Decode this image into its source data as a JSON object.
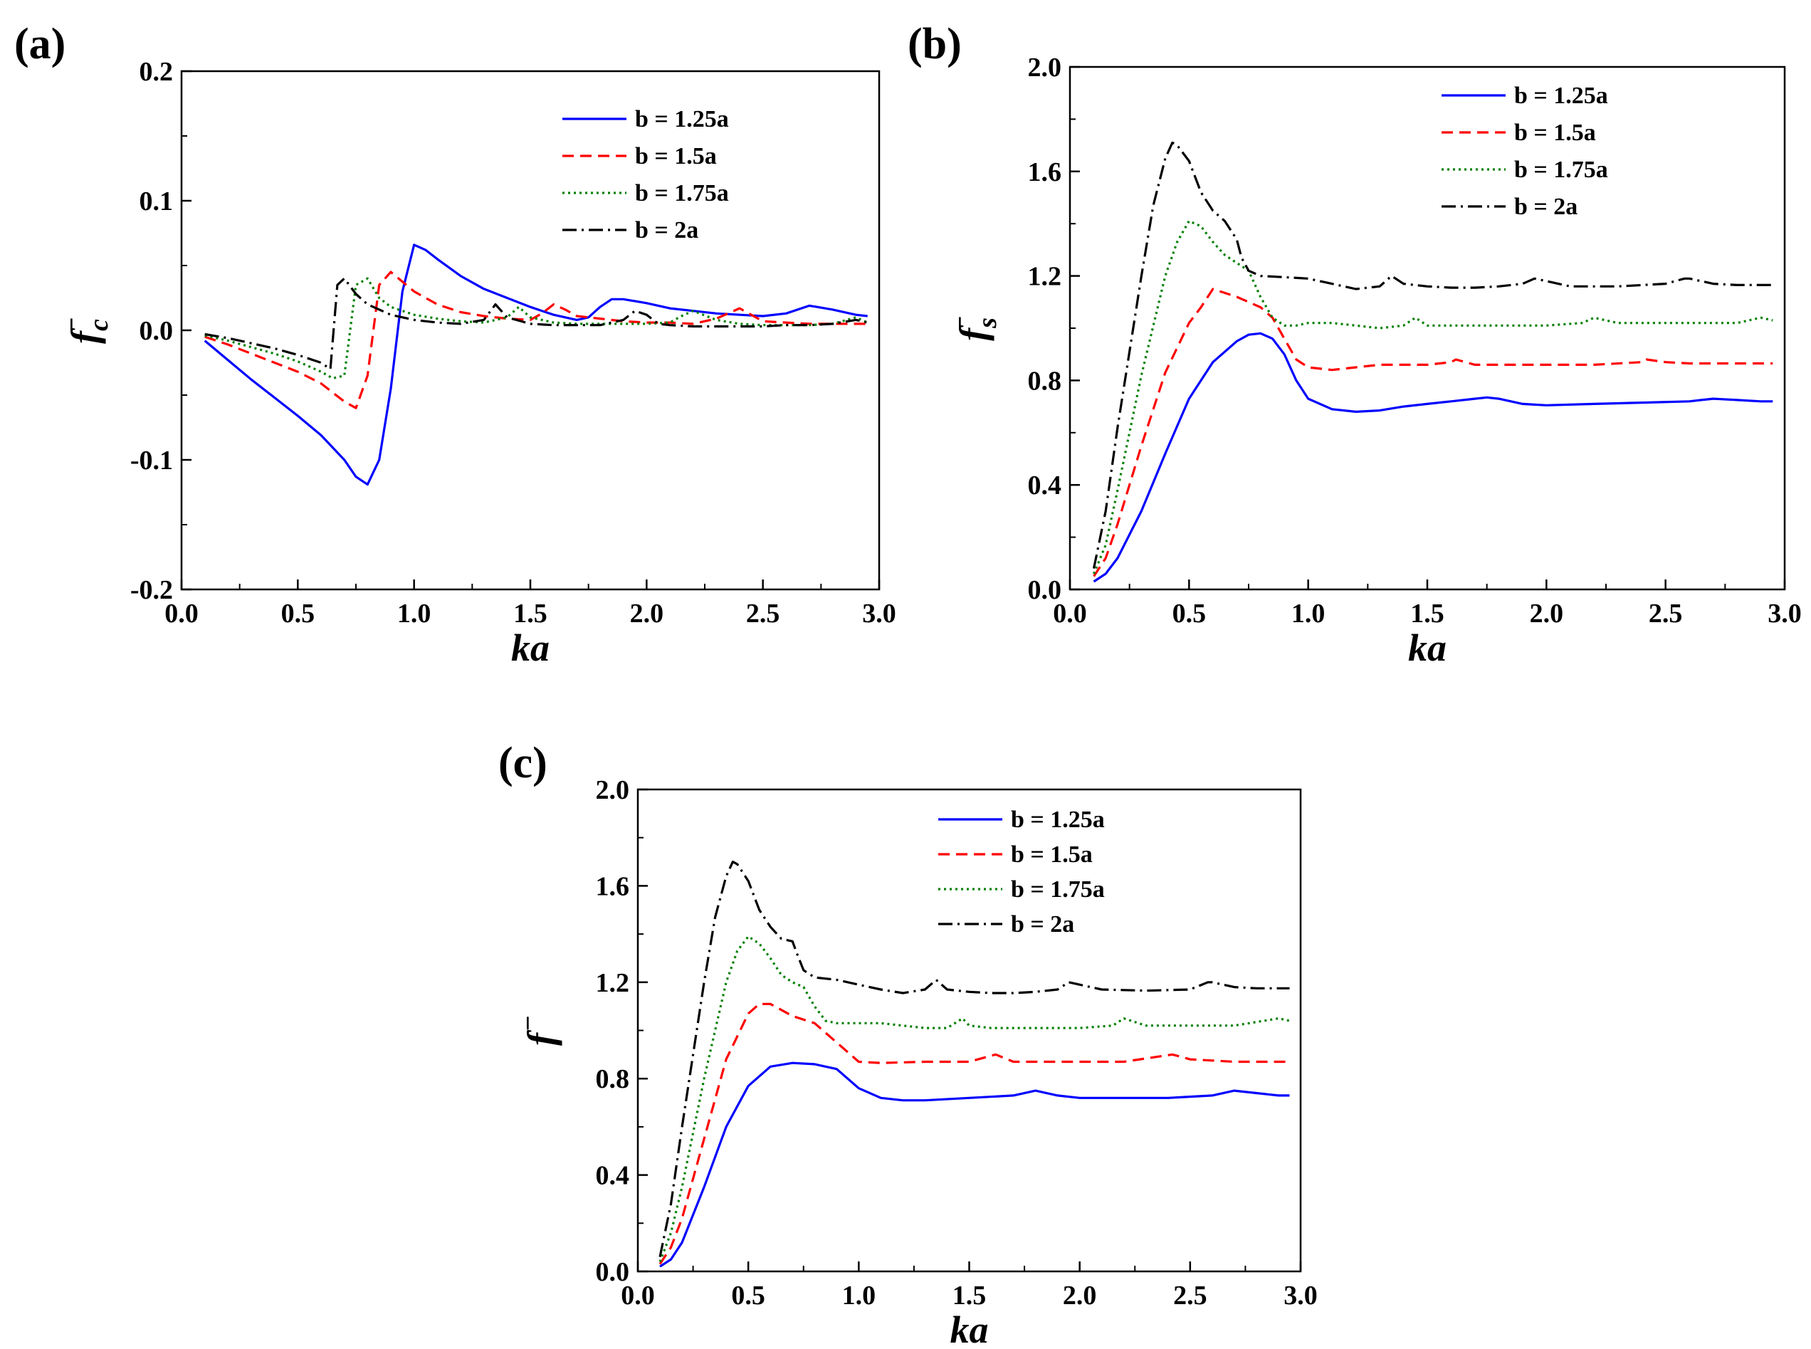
{
  "figure": {
    "background": "#ffffff"
  },
  "series_styles": [
    {
      "name": "b = 1.25a",
      "color": "#0000ff",
      "dash": "solid"
    },
    {
      "name": "b = 1.5a",
      "color": "#ff0000",
      "dash": "dashed"
    },
    {
      "name": "b = 1.75a",
      "color": "#008000",
      "dash": "dotted"
    },
    {
      "name": "b = 2a",
      "color": "#000000",
      "dash": "dashdot"
    }
  ],
  "chart_data": [
    {
      "id": "a",
      "type": "line",
      "panel_label": "(a)",
      "xlabel": "ka",
      "ylabel": "fc−",
      "ylabel_main": "f",
      "ylabel_sub": "c",
      "ylabel_sup": "−",
      "xlim": [
        0.0,
        3.0
      ],
      "ylim": [
        -0.2,
        0.2
      ],
      "x_ticks": [
        "0.0",
        "0.5",
        "1.0",
        "1.5",
        "2.0",
        "2.5",
        "3.0"
      ],
      "y_ticks": [
        "-0.2",
        "-0.1",
        "0.0",
        "0.1",
        "0.2"
      ],
      "legend": [
        "b = 1.25a",
        "b = 1.5a",
        "b = 1.75a",
        "b = 2a"
      ],
      "series": [
        {
          "name": "b = 1.25a",
          "x": [
            0.1,
            0.2,
            0.3,
            0.4,
            0.5,
            0.6,
            0.7,
            0.75,
            0.8,
            0.85,
            0.9,
            0.95,
            1.0,
            1.05,
            1.1,
            1.2,
            1.3,
            1.4,
            1.5,
            1.6,
            1.7,
            1.75,
            1.8,
            1.85,
            1.9,
            2.0,
            2.1,
            2.2,
            2.3,
            2.4,
            2.5,
            2.6,
            2.7,
            2.8,
            2.9,
            2.95
          ],
          "y": [
            -0.008,
            -0.023,
            -0.038,
            -0.052,
            -0.066,
            -0.081,
            -0.1,
            -0.113,
            -0.119,
            -0.1,
            -0.045,
            0.03,
            0.066,
            0.062,
            0.055,
            0.042,
            0.032,
            0.025,
            0.018,
            0.012,
            0.008,
            0.01,
            0.018,
            0.024,
            0.024,
            0.021,
            0.017,
            0.015,
            0.013,
            0.012,
            0.011,
            0.013,
            0.019,
            0.016,
            0.012,
            0.011
          ]
        },
        {
          "name": "b = 1.5a",
          "x": [
            0.1,
            0.2,
            0.3,
            0.4,
            0.5,
            0.6,
            0.65,
            0.7,
            0.75,
            0.8,
            0.85,
            0.9,
            1.0,
            1.1,
            1.2,
            1.3,
            1.4,
            1.5,
            1.55,
            1.6,
            1.65,
            1.7,
            1.8,
            1.9,
            2.0,
            2.1,
            2.2,
            2.3,
            2.4,
            2.45,
            2.5,
            2.6,
            2.7,
            2.8,
            2.9,
            2.95
          ],
          "y": [
            -0.005,
            -0.011,
            -0.018,
            -0.025,
            -0.032,
            -0.041,
            -0.048,
            -0.055,
            -0.06,
            -0.035,
            0.035,
            0.045,
            0.03,
            0.02,
            0.014,
            0.011,
            0.009,
            0.008,
            0.013,
            0.02,
            0.016,
            0.011,
            0.009,
            0.007,
            0.006,
            0.006,
            0.005,
            0.009,
            0.017,
            0.012,
            0.007,
            0.006,
            0.005,
            0.005,
            0.005,
            0.005
          ]
        },
        {
          "name": "b = 1.75a",
          "x": [
            0.1,
            0.2,
            0.3,
            0.4,
            0.5,
            0.6,
            0.65,
            0.7,
            0.75,
            0.8,
            0.85,
            0.9,
            1.0,
            1.1,
            1.2,
            1.3,
            1.4,
            1.45,
            1.5,
            1.6,
            1.7,
            1.8,
            1.9,
            2.0,
            2.1,
            2.15,
            2.2,
            2.3,
            2.4,
            2.5,
            2.6,
            2.7,
            2.8,
            2.9,
            2.95
          ],
          "y": [
            -0.004,
            -0.008,
            -0.013,
            -0.018,
            -0.024,
            -0.032,
            -0.037,
            -0.035,
            0.035,
            0.04,
            0.025,
            0.018,
            0.012,
            0.009,
            0.007,
            0.006,
            0.01,
            0.018,
            0.01,
            0.006,
            0.005,
            0.005,
            0.005,
            0.005,
            0.006,
            0.011,
            0.015,
            0.008,
            0.005,
            0.004,
            0.004,
            0.004,
            0.005,
            0.01,
            0.006
          ]
        },
        {
          "name": "b = 2a",
          "x": [
            0.1,
            0.2,
            0.3,
            0.4,
            0.5,
            0.6,
            0.64,
            0.67,
            0.7,
            0.75,
            0.8,
            0.9,
            1.0,
            1.1,
            1.2,
            1.3,
            1.35,
            1.4,
            1.5,
            1.6,
            1.7,
            1.8,
            1.9,
            1.95,
            2.0,
            2.05,
            2.1,
            2.2,
            2.3,
            2.4,
            2.5,
            2.6,
            2.7,
            2.8,
            2.9,
            2.95
          ],
          "y": [
            -0.003,
            -0.006,
            -0.01,
            -0.014,
            -0.019,
            -0.025,
            -0.03,
            0.035,
            0.04,
            0.028,
            0.02,
            0.012,
            0.008,
            0.006,
            0.005,
            0.008,
            0.02,
            0.01,
            0.005,
            0.004,
            0.004,
            0.004,
            0.008,
            0.015,
            0.012,
            0.005,
            0.004,
            0.003,
            0.003,
            0.003,
            0.003,
            0.004,
            0.004,
            0.005,
            0.008,
            0.006
          ]
        }
      ]
    },
    {
      "id": "b",
      "type": "line",
      "panel_label": "(b)",
      "xlabel": "ka",
      "ylabel": "fs−",
      "ylabel_main": "f",
      "ylabel_sub": "s",
      "ylabel_sup": "−",
      "xlim": [
        0.0,
        3.0
      ],
      "ylim": [
        0.0,
        2.0
      ],
      "x_ticks": [
        "0.0",
        "0.5",
        "1.0",
        "1.5",
        "2.0",
        "2.5",
        "3.0"
      ],
      "y_ticks": [
        "0.0",
        "0.4",
        "0.8",
        "1.2",
        "1.6",
        "2.0"
      ],
      "legend": [
        "b = 1.25a",
        "b = 1.5a",
        "b = 1.75a",
        "b = 2a"
      ],
      "series": [
        {
          "name": "b = 1.25a",
          "x": [
            0.1,
            0.15,
            0.2,
            0.3,
            0.4,
            0.5,
            0.6,
            0.7,
            0.75,
            0.8,
            0.85,
            0.9,
            0.95,
            1.0,
            1.1,
            1.2,
            1.3,
            1.4,
            1.5,
            1.6,
            1.7,
            1.75,
            1.8,
            1.9,
            2.0,
            2.2,
            2.4,
            2.6,
            2.65,
            2.7,
            2.8,
            2.9,
            2.95
          ],
          "y": [
            0.03,
            0.06,
            0.12,
            0.3,
            0.52,
            0.73,
            0.87,
            0.95,
            0.975,
            0.98,
            0.96,
            0.9,
            0.8,
            0.73,
            0.69,
            0.68,
            0.685,
            0.7,
            0.71,
            0.72,
            0.73,
            0.735,
            0.73,
            0.71,
            0.705,
            0.71,
            0.715,
            0.72,
            0.725,
            0.73,
            0.725,
            0.72,
            0.72
          ]
        },
        {
          "name": "b = 1.5a",
          "x": [
            0.1,
            0.15,
            0.2,
            0.3,
            0.4,
            0.5,
            0.55,
            0.6,
            0.7,
            0.8,
            0.85,
            0.9,
            0.95,
            1.0,
            1.1,
            1.2,
            1.3,
            1.4,
            1.5,
            1.6,
            1.62,
            1.7,
            1.8,
            2.0,
            2.2,
            2.4,
            2.42,
            2.5,
            2.6,
            2.8,
            2.95
          ],
          "y": [
            0.05,
            0.12,
            0.25,
            0.55,
            0.83,
            1.02,
            1.08,
            1.15,
            1.12,
            1.08,
            1.04,
            0.96,
            0.88,
            0.85,
            0.84,
            0.85,
            0.86,
            0.86,
            0.86,
            0.87,
            0.88,
            0.86,
            0.86,
            0.86,
            0.86,
            0.87,
            0.88,
            0.87,
            0.865,
            0.865,
            0.865
          ]
        },
        {
          "name": "b = 1.75a",
          "x": [
            0.1,
            0.15,
            0.2,
            0.3,
            0.4,
            0.45,
            0.5,
            0.55,
            0.6,
            0.65,
            0.7,
            0.75,
            0.8,
            0.85,
            0.9,
            0.95,
            1.0,
            1.1,
            1.2,
            1.3,
            1.4,
            1.45,
            1.5,
            1.6,
            1.8,
            2.0,
            2.15,
            2.2,
            2.3,
            2.5,
            2.7,
            2.8,
            2.9,
            2.95
          ],
          "y": [
            0.06,
            0.17,
            0.38,
            0.82,
            1.2,
            1.33,
            1.41,
            1.39,
            1.33,
            1.28,
            1.25,
            1.22,
            1.12,
            1.04,
            1.01,
            1.01,
            1.02,
            1.02,
            1.01,
            1.0,
            1.01,
            1.04,
            1.01,
            1.01,
            1.01,
            1.01,
            1.02,
            1.04,
            1.02,
            1.02,
            1.02,
            1.02,
            1.04,
            1.03
          ]
        },
        {
          "name": "b = 2a",
          "x": [
            0.1,
            0.15,
            0.2,
            0.3,
            0.35,
            0.4,
            0.43,
            0.45,
            0.5,
            0.55,
            0.6,
            0.65,
            0.7,
            0.72,
            0.75,
            0.8,
            0.9,
            1.0,
            1.1,
            1.2,
            1.3,
            1.35,
            1.4,
            1.5,
            1.6,
            1.7,
            1.8,
            1.9,
            1.95,
            2.0,
            2.1,
            2.3,
            2.5,
            2.58,
            2.6,
            2.7,
            2.8,
            2.9,
            2.95
          ],
          "y": [
            0.08,
            0.3,
            0.62,
            1.2,
            1.47,
            1.65,
            1.71,
            1.7,
            1.64,
            1.52,
            1.45,
            1.41,
            1.34,
            1.27,
            1.22,
            1.2,
            1.195,
            1.19,
            1.17,
            1.15,
            1.16,
            1.2,
            1.17,
            1.16,
            1.155,
            1.155,
            1.16,
            1.17,
            1.19,
            1.18,
            1.16,
            1.16,
            1.17,
            1.19,
            1.19,
            1.17,
            1.165,
            1.165,
            1.165
          ]
        }
      ]
    },
    {
      "id": "c",
      "type": "line",
      "panel_label": "(c)",
      "xlabel": "ka",
      "ylabel": "f−",
      "ylabel_main": "f",
      "ylabel_sub": "",
      "ylabel_sup": "−",
      "xlim": [
        0.0,
        3.0
      ],
      "ylim": [
        0.0,
        2.0
      ],
      "x_ticks": [
        "0.0",
        "0.5",
        "1.0",
        "1.5",
        "2.0",
        "2.5",
        "3.0"
      ],
      "y_ticks": [
        "0.0",
        "0.4",
        "0.8",
        "1.2",
        "1.6",
        "2.0"
      ],
      "legend": [
        "b = 1.25a",
        "b = 1.5a",
        "b = 1.75a",
        "b = 2a"
      ],
      "series": [
        {
          "name": "b = 1.25a",
          "x": [
            0.1,
            0.15,
            0.2,
            0.3,
            0.4,
            0.5,
            0.6,
            0.7,
            0.8,
            0.9,
            1.0,
            1.1,
            1.2,
            1.3,
            1.5,
            1.7,
            1.8,
            1.9,
            2.0,
            2.2,
            2.4,
            2.6,
            2.7,
            2.8,
            2.9,
            2.95
          ],
          "y": [
            0.02,
            0.05,
            0.12,
            0.35,
            0.6,
            0.77,
            0.85,
            0.865,
            0.86,
            0.84,
            0.76,
            0.72,
            0.71,
            0.71,
            0.72,
            0.73,
            0.75,
            0.73,
            0.72,
            0.72,
            0.72,
            0.73,
            0.75,
            0.74,
            0.73,
            0.73
          ]
        },
        {
          "name": "b = 1.5a",
          "x": [
            0.1,
            0.15,
            0.2,
            0.3,
            0.4,
            0.5,
            0.55,
            0.6,
            0.7,
            0.8,
            0.9,
            1.0,
            1.1,
            1.3,
            1.5,
            1.62,
            1.7,
            1.9,
            2.2,
            2.42,
            2.5,
            2.7,
            2.95
          ],
          "y": [
            0.03,
            0.1,
            0.22,
            0.55,
            0.88,
            1.07,
            1.11,
            1.11,
            1.06,
            1.03,
            0.95,
            0.87,
            0.865,
            0.87,
            0.87,
            0.9,
            0.87,
            0.87,
            0.87,
            0.9,
            0.88,
            0.87,
            0.87
          ]
        },
        {
          "name": "b = 1.75a",
          "x": [
            0.1,
            0.15,
            0.2,
            0.3,
            0.4,
            0.45,
            0.5,
            0.55,
            0.6,
            0.65,
            0.7,
            0.75,
            0.8,
            0.85,
            0.9,
            1.0,
            1.1,
            1.2,
            1.3,
            1.4,
            1.47,
            1.5,
            1.6,
            1.8,
            2.0,
            2.15,
            2.2,
            2.3,
            2.5,
            2.7,
            2.9,
            2.95
          ],
          "y": [
            0.04,
            0.16,
            0.35,
            0.8,
            1.2,
            1.33,
            1.39,
            1.36,
            1.3,
            1.23,
            1.2,
            1.18,
            1.1,
            1.04,
            1.03,
            1.03,
            1.03,
            1.02,
            1.01,
            1.01,
            1.05,
            1.02,
            1.01,
            1.01,
            1.01,
            1.02,
            1.05,
            1.02,
            1.02,
            1.02,
            1.05,
            1.04
          ]
        },
        {
          "name": "b = 2a",
          "x": [
            0.1,
            0.15,
            0.2,
            0.3,
            0.35,
            0.4,
            0.43,
            0.45,
            0.5,
            0.55,
            0.6,
            0.65,
            0.7,
            0.72,
            0.75,
            0.8,
            0.9,
            1.0,
            1.1,
            1.2,
            1.3,
            1.35,
            1.4,
            1.5,
            1.6,
            1.7,
            1.8,
            1.9,
            1.95,
            2.0,
            2.1,
            2.3,
            2.5,
            2.58,
            2.6,
            2.7,
            2.8,
            2.9,
            2.95
          ],
          "y": [
            0.06,
            0.28,
            0.6,
            1.2,
            1.47,
            1.64,
            1.7,
            1.69,
            1.62,
            1.5,
            1.43,
            1.38,
            1.37,
            1.32,
            1.25,
            1.22,
            1.21,
            1.19,
            1.17,
            1.155,
            1.17,
            1.21,
            1.17,
            1.16,
            1.155,
            1.155,
            1.16,
            1.17,
            1.2,
            1.19,
            1.17,
            1.165,
            1.17,
            1.2,
            1.2,
            1.18,
            1.175,
            1.175,
            1.175
          ]
        }
      ]
    }
  ]
}
